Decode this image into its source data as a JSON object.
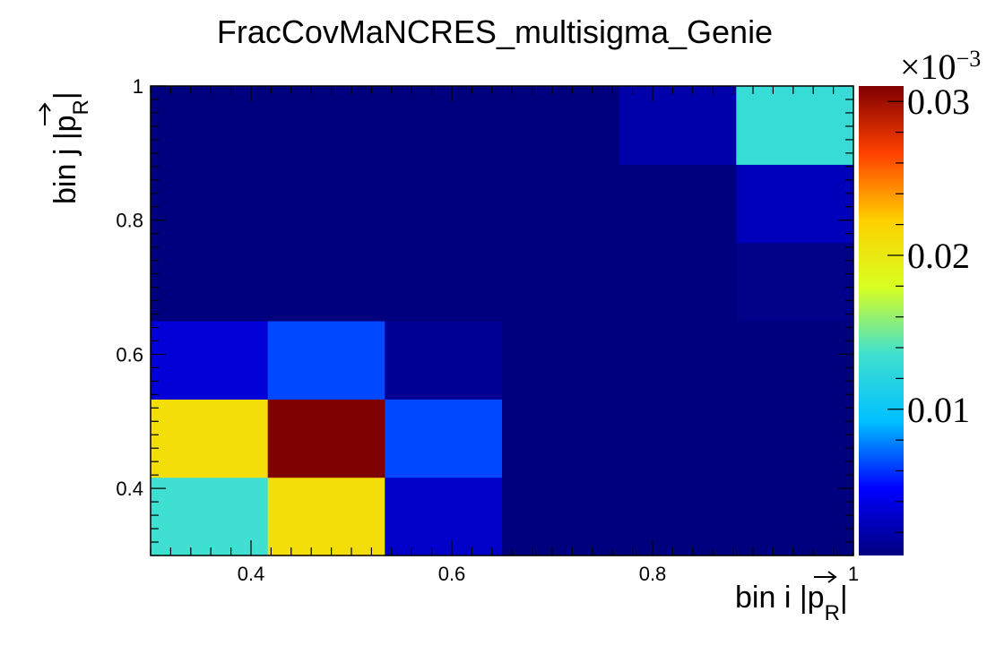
{
  "chart_data": {
    "type": "heatmap",
    "title": "FracCovMaNCRES_multisigma_Genie",
    "xlabel": {
      "text": "bin i |p",
      "vector_letter": "p",
      "subscript": "R",
      "close": "|"
    },
    "ylabel": {
      "text": "bin j |p",
      "vector_letter": "p",
      "subscript": "R",
      "close": "|"
    },
    "x_edges": [
      0.3,
      0.4167,
      0.5333,
      0.65,
      0.7667,
      0.8833,
      1.0
    ],
    "y_edges": [
      0.3,
      0.4167,
      0.5333,
      0.65,
      0.7667,
      0.8833,
      1.0
    ],
    "xlim": [
      0.3,
      1.0
    ],
    "ylim": [
      0.3,
      1.0
    ],
    "x_ticks": [
      {
        "value": 0.4,
        "label": "0.4"
      },
      {
        "value": 0.6,
        "label": "0.6"
      },
      {
        "value": 0.8,
        "label": "0.8"
      },
      {
        "value": 1.0,
        "label": "1"
      }
    ],
    "y_ticks": [
      {
        "value": 0.4,
        "label": "0.4"
      },
      {
        "value": 0.6,
        "label": "0.6"
      },
      {
        "value": 0.8,
        "label": "0.8"
      },
      {
        "value": 1.0,
        "label": "1"
      }
    ],
    "values_rows_bottom_to_top_e-3": [
      [
        0.0135,
        0.021,
        0.003,
        0.0002,
        0.0002,
        0.0002
      ],
      [
        0.021,
        0.031,
        0.0065,
        0.0002,
        0.0002,
        0.0002
      ],
      [
        0.0035,
        0.0065,
        0.0012,
        0.0002,
        0.0002,
        0.0002
      ],
      [
        0.0001,
        0.0001,
        0.0002,
        0.0002,
        0.0002,
        0.0008
      ],
      [
        0.0001,
        0.0001,
        0.0001,
        0.0002,
        0.0002,
        0.0025
      ],
      [
        0.0001,
        0.0001,
        0.0001,
        0.0003,
        0.002,
        0.013
      ]
    ],
    "value_scale": "×10",
    "value_scale_exponent": "−3",
    "zlim": [
      0.0005,
      0.031
    ],
    "colorbar_ticks": [
      {
        "value": 0.01,
        "label": "0.01"
      },
      {
        "value": 0.02,
        "label": "0.02"
      },
      {
        "value": 0.03,
        "label": "0.03"
      }
    ],
    "colormap": "jet",
    "colormap_stops": [
      "#00007f",
      "#0000ff",
      "#00c0ff",
      "#40e0d0",
      "#d8ff20",
      "#ffd000",
      "#ff4000",
      "#7f0000"
    ]
  }
}
